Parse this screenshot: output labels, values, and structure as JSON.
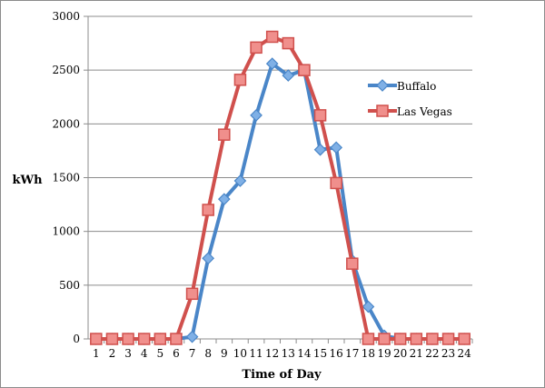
{
  "chart_data": {
    "type": "line",
    "title": "",
    "xlabel": "Time of Day",
    "ylabel": "kWh",
    "x": [
      1,
      2,
      3,
      4,
      5,
      6,
      7,
      8,
      9,
      10,
      11,
      12,
      13,
      14,
      15,
      16,
      17,
      18,
      19,
      20,
      21,
      22,
      23,
      24
    ],
    "ylim": [
      0,
      3000
    ],
    "yticks": [
      0,
      500,
      1000,
      1500,
      2000,
      2500,
      3000
    ],
    "grid": "horizontal",
    "legend": "right",
    "series": [
      {
        "name": "Buffalo",
        "color": "#4a86c8",
        "marker": "diamond",
        "values": [
          0,
          0,
          0,
          0,
          0,
          0,
          20,
          750,
          1300,
          1470,
          2080,
          2560,
          2450,
          2500,
          1760,
          1780,
          730,
          300,
          30,
          0,
          0,
          0,
          0,
          0
        ]
      },
      {
        "name": "Las Vegas",
        "color": "#d0504d",
        "marker": "square",
        "values": [
          0,
          0,
          0,
          0,
          0,
          0,
          420,
          1200,
          1900,
          2410,
          2710,
          2810,
          2750,
          2500,
          2080,
          1450,
          700,
          0,
          0,
          0,
          0,
          0,
          0,
          0
        ]
      }
    ]
  }
}
